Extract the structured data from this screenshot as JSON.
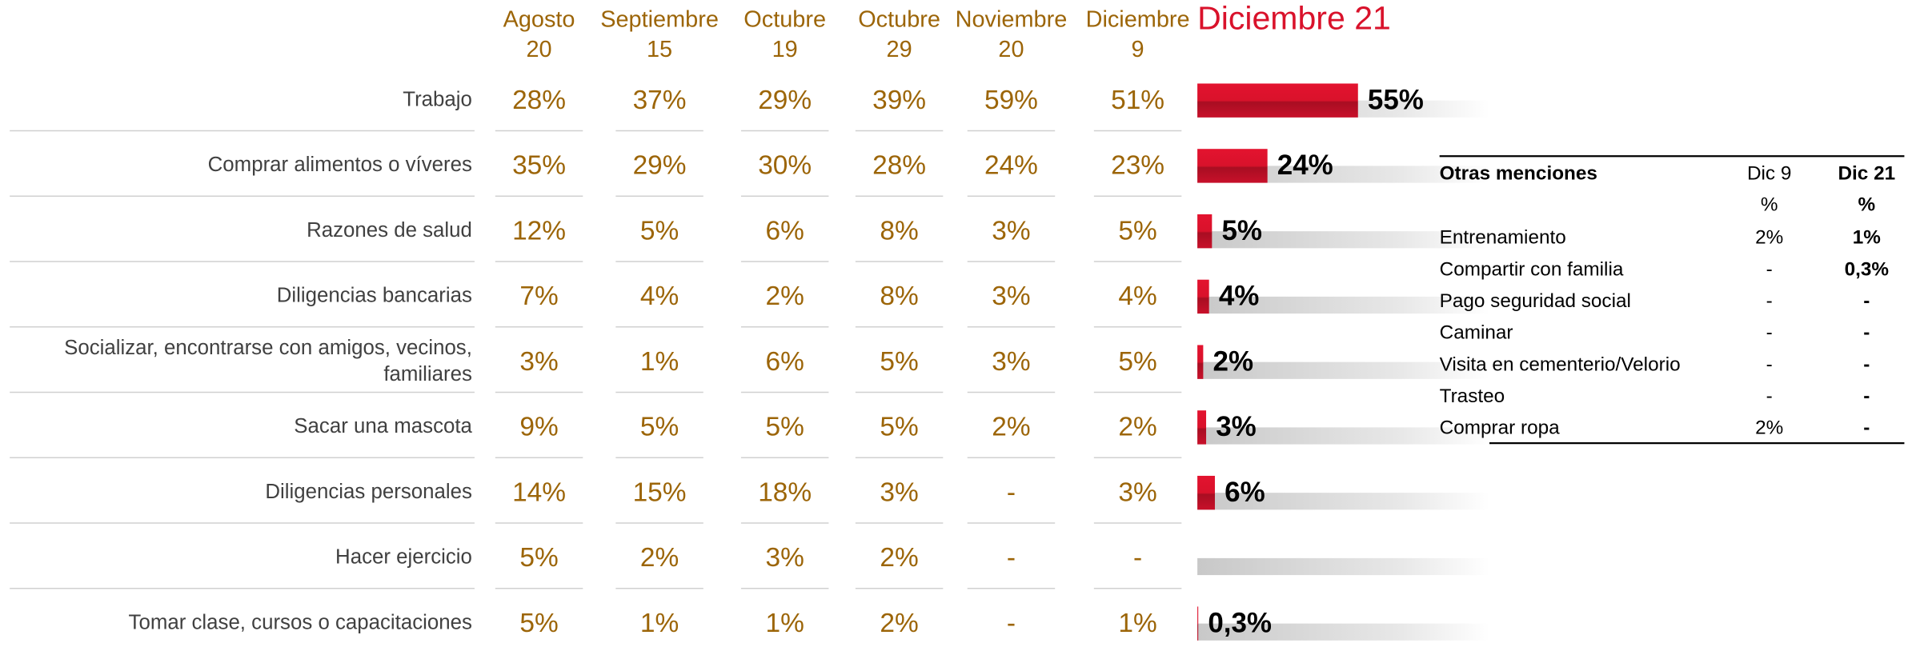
{
  "title": "Diciembre 21",
  "columns": [
    {
      "month": "Agosto",
      "day": "20"
    },
    {
      "month": "Septiembre",
      "day": "15"
    },
    {
      "month": "Octubre",
      "day": "19"
    },
    {
      "month": "Octubre",
      "day": "29"
    },
    {
      "month": "Noviembre",
      "day": "20"
    },
    {
      "month": "Diciembre",
      "day": "9"
    }
  ],
  "rows": [
    {
      "label": [
        "Trabajo"
      ],
      "values": [
        "28%",
        "37%",
        "29%",
        "39%",
        "59%",
        "51%"
      ],
      "bar": {
        "value": 55,
        "label": "55%"
      }
    },
    {
      "label": [
        "Comprar alimentos o víveres"
      ],
      "values": [
        "35%",
        "29%",
        "30%",
        "28%",
        "24%",
        "23%"
      ],
      "bar": {
        "value": 24,
        "label": "24%"
      }
    },
    {
      "label": [
        "Razones de salud"
      ],
      "values": [
        "12%",
        "5%",
        "6%",
        "8%",
        "3%",
        "5%"
      ],
      "bar": {
        "value": 5,
        "label": "5%"
      }
    },
    {
      "label": [
        "Diligencias bancarias"
      ],
      "values": [
        "7%",
        "4%",
        "2%",
        "8%",
        "3%",
        "4%"
      ],
      "bar": {
        "value": 4,
        "label": "4%"
      }
    },
    {
      "label": [
        "Socializar, encontrarse con amigos, vecinos,",
        "familiares"
      ],
      "values": [
        "3%",
        "1%",
        "6%",
        "5%",
        "3%",
        "5%"
      ],
      "bar": {
        "value": 2,
        "label": "2%"
      }
    },
    {
      "label": [
        "Sacar una mascota"
      ],
      "values": [
        "9%",
        "5%",
        "5%",
        "5%",
        "2%",
        "2%"
      ],
      "bar": {
        "value": 3,
        "label": "3%"
      }
    },
    {
      "label": [
        "Diligencias personales"
      ],
      "values": [
        "14%",
        "15%",
        "18%",
        "3%",
        "-",
        "3%"
      ],
      "bar": {
        "value": 6,
        "label": "6%"
      }
    },
    {
      "label": [
        "Hacer ejercicio"
      ],
      "values": [
        "5%",
        "2%",
        "3%",
        "2%",
        "-",
        "-"
      ],
      "bar": null
    },
    {
      "label": [
        "Tomar clase, cursos o capacitaciones"
      ],
      "values": [
        "5%",
        "1%",
        "1%",
        "2%",
        "-",
        "1%"
      ],
      "bar": {
        "value": 0.3,
        "label": "0,3%"
      }
    }
  ],
  "side_table": {
    "header": [
      "Otras menciones",
      "Dic 9",
      "Dic 21"
    ],
    "units": [
      "%",
      "%"
    ],
    "rows": [
      [
        "Entrenamiento",
        "2%",
        "1%"
      ],
      [
        "Compartir con familia",
        "-",
        "0,3%"
      ],
      [
        "Pago seguridad social",
        "-",
        "-"
      ],
      [
        "Caminar",
        "-",
        "-"
      ],
      [
        "Visita en cementerio/Velorio",
        "-",
        "-"
      ],
      [
        "Trasteo",
        "-",
        "-"
      ],
      [
        "Comprar ropa",
        "2%",
        "-"
      ]
    ]
  }
}
